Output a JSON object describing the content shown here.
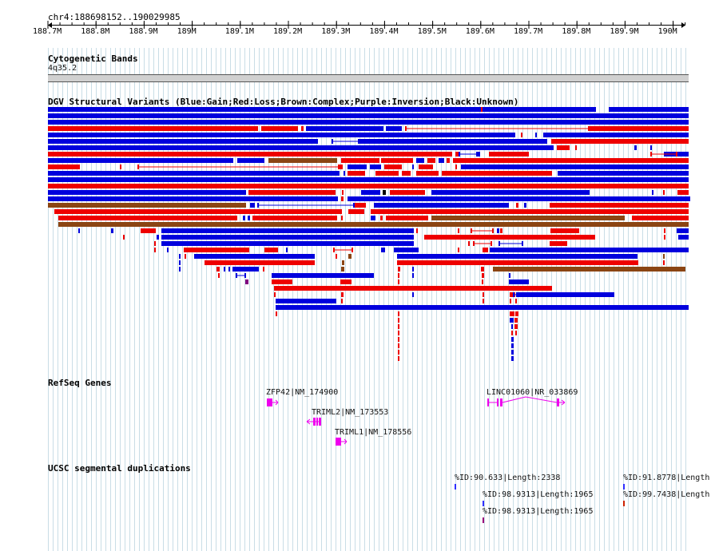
{
  "ruler": {
    "location": "chr4:188698152..190029985",
    "ticks": [
      "188.7M",
      "188.8M",
      "188.9M",
      "189M",
      "189.1M",
      "189.2M",
      "189.3M",
      "189.4M",
      "189.5M",
      "189.6M",
      "189.7M",
      "189.8M",
      "189.9M",
      "190M"
    ]
  },
  "tracks": {
    "cytoband": {
      "title": "Cytogenetic Bands",
      "band": "4q35.2"
    },
    "dgv": {
      "title": "DGV Structural Variants (Blue:Gain;Red:Loss;Brown:Complex;Purple:Inversion;Black:Unknown)"
    },
    "refseq": {
      "title": "RefSeq Genes",
      "genes": [
        {
          "label": "ZFP42|NM_174900",
          "strand": "+"
        },
        {
          "label": "TRIML2|NM_173553",
          "strand": "-"
        },
        {
          "label": "TRIML1|NM_178556",
          "strand": "+"
        },
        {
          "label": "LINC01060|NR_033869",
          "strand": "+"
        }
      ]
    },
    "segdups": {
      "title": "UCSC segmental duplications",
      "features": [
        {
          "label": "%ID:90.633|Length:2338"
        },
        {
          "label": "%ID:98.9313|Length:1965"
        },
        {
          "label": "%ID:98.9313|Length:1965"
        },
        {
          "label": "%ID:91.8778|Length"
        },
        {
          "label": "%ID:99.7438|Length"
        }
      ]
    }
  },
  "colors": {
    "gain": "#0000dd",
    "loss": "#ee0000",
    "complex": "#8b4513",
    "inversion": "#800080",
    "unknown": "#000000",
    "gene": "#ee00ee",
    "grid": "#c9dde6",
    "segdup_a": "#3030ff",
    "segdup_b": "#cc2200",
    "segdup_c": "#9a007a"
  }
}
